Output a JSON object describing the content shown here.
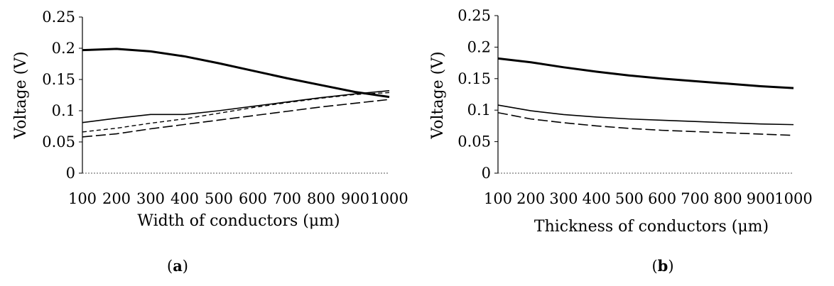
{
  "captions": {
    "a": {
      "open": "(",
      "letter": "a",
      "close": ")"
    },
    "b": {
      "open": "(",
      "letter": "b",
      "close": ")"
    }
  },
  "chart_data": [
    {
      "id": "a",
      "type": "line",
      "xlabel": "Width of conductors (μm)",
      "ylabel": "Voltage (V)",
      "categories": [
        "100",
        "200",
        "300",
        "400",
        "500",
        "600",
        "700",
        "800",
        "900",
        "1000"
      ],
      "y_ticks": [
        "0",
        "0.05",
        "0.1",
        "0.15",
        "0.2",
        "0.25"
      ],
      "ylim": [
        0,
        0.25
      ],
      "grid": false,
      "series": [
        {
          "style": "solid-thick",
          "values": [
            0.197,
            0.199,
            0.195,
            0.187,
            0.176,
            0.164,
            0.152,
            0.141,
            0.13,
            0.122
          ]
        },
        {
          "style": "solid-thin",
          "values": [
            0.081,
            0.088,
            0.094,
            0.094,
            0.1,
            0.107,
            0.114,
            0.121,
            0.127,
            0.132
          ]
        },
        {
          "style": "short-dash",
          "values": [
            0.066,
            0.072,
            0.08,
            0.087,
            0.096,
            0.105,
            0.113,
            0.12,
            0.126,
            0.129
          ]
        },
        {
          "style": "long-dash",
          "values": [
            0.058,
            0.063,
            0.071,
            0.078,
            0.085,
            0.092,
            0.099,
            0.106,
            0.112,
            0.118
          ]
        }
      ]
    },
    {
      "id": "b",
      "type": "line",
      "xlabel": "Thickness of conductors (μm)",
      "ylabel": "Voltage (V)",
      "categories": [
        "100",
        "200",
        "300",
        "400",
        "500",
        "600",
        "700",
        "800",
        "900",
        "1000"
      ],
      "y_ticks": [
        "0",
        "0.05",
        "0.1",
        "0.15",
        "0.2",
        "0.25"
      ],
      "ylim": [
        0,
        0.25
      ],
      "grid": false,
      "series": [
        {
          "style": "solid-thick",
          "values": [
            0.182,
            0.176,
            0.168,
            0.161,
            0.155,
            0.15,
            0.146,
            0.142,
            0.138,
            0.135
          ]
        },
        {
          "style": "solid-thin",
          "values": [
            0.108,
            0.099,
            0.093,
            0.089,
            0.086,
            0.084,
            0.082,
            0.08,
            0.078,
            0.077
          ]
        },
        {
          "style": "long-dash",
          "values": [
            0.096,
            0.086,
            0.08,
            0.075,
            0.071,
            0.068,
            0.066,
            0.064,
            0.062,
            0.06
          ]
        }
      ]
    }
  ]
}
